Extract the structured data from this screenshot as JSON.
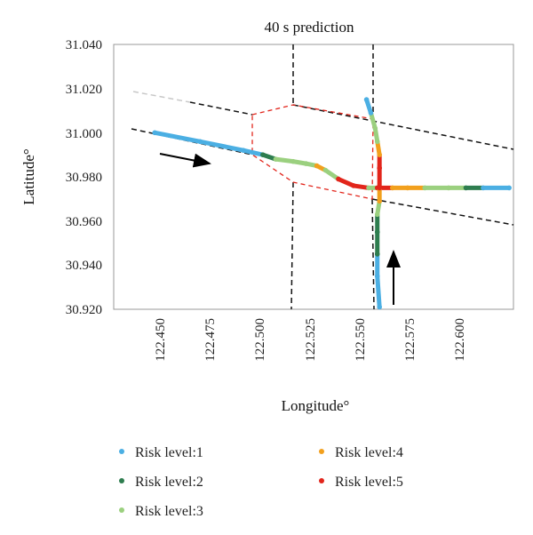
{
  "chart_data": {
    "type": "scatter",
    "title": "40 s prediction",
    "xlabel": "Longitude°",
    "ylabel": "Latitude°",
    "xlim": [
      122.43,
      122.615
    ],
    "ylim": [
      30.92,
      31.04
    ],
    "x_ticks": [
      "122.450",
      "122.475",
      "122.500",
      "122.525",
      "122.550",
      "122.575",
      "122.600"
    ],
    "y_ticks": [
      "31.040",
      "31.020",
      "31.000",
      "30.980",
      "30.960",
      "30.940",
      "30.920"
    ],
    "series": [
      {
        "name": "Risk level:1",
        "color": "#4bafe3"
      },
      {
        "name": "Risk level:2",
        "color": "#2e7d4f"
      },
      {
        "name": "Risk level:3",
        "color": "#9bd07f"
      },
      {
        "name": "Risk level:4",
        "color": "#f2a01d"
      },
      {
        "name": "Risk level:5",
        "color": "#e2251b"
      }
    ],
    "tracks": [
      {
        "name": "eastbound",
        "points": [
          {
            "x": 122.449,
            "y": 31.0,
            "level": 1
          },
          {
            "x": 122.47,
            "y": 30.996,
            "level": 1
          },
          {
            "x": 122.49,
            "y": 30.992,
            "level": 1
          },
          {
            "x": 122.499,
            "y": 30.99,
            "level": 2
          },
          {
            "x": 122.505,
            "y": 30.988,
            "level": 3
          },
          {
            "x": 122.513,
            "y": 30.987,
            "level": 3
          },
          {
            "x": 122.519,
            "y": 30.986,
            "level": 3
          },
          {
            "x": 122.524,
            "y": 30.985,
            "level": 4
          },
          {
            "x": 122.528,
            "y": 30.983,
            "level": 3
          },
          {
            "x": 122.534,
            "y": 30.979,
            "level": 5
          },
          {
            "x": 122.541,
            "y": 30.976,
            "level": 5
          },
          {
            "x": 122.548,
            "y": 30.975,
            "level": 3
          },
          {
            "x": 122.552,
            "y": 30.975,
            "level": 5
          },
          {
            "x": 122.559,
            "y": 30.975,
            "level": 4
          },
          {
            "x": 122.566,
            "y": 30.975,
            "level": 4
          },
          {
            "x": 122.574,
            "y": 30.975,
            "level": 3
          },
          {
            "x": 122.585,
            "y": 30.975,
            "level": 3
          },
          {
            "x": 122.593,
            "y": 30.975,
            "level": 2
          },
          {
            "x": 122.601,
            "y": 30.975,
            "level": 1
          },
          {
            "x": 122.613,
            "y": 30.975,
            "level": 1
          }
        ]
      },
      {
        "name": "northbound",
        "points": [
          {
            "x": 122.553,
            "y": 30.921,
            "level": 1
          },
          {
            "x": 122.552,
            "y": 30.935,
            "level": 1
          },
          {
            "x": 122.552,
            "y": 30.945,
            "level": 2
          },
          {
            "x": 122.552,
            "y": 30.955,
            "level": 2
          },
          {
            "x": 122.552,
            "y": 30.963,
            "level": 3
          },
          {
            "x": 122.553,
            "y": 30.969,
            "level": 4
          },
          {
            "x": 122.553,
            "y": 30.975,
            "level": 5
          },
          {
            "x": 122.553,
            "y": 30.984,
            "level": 5
          },
          {
            "x": 122.553,
            "y": 30.99,
            "level": 4
          },
          {
            "x": 122.552,
            "y": 30.996,
            "level": 3
          },
          {
            "x": 122.551,
            "y": 31.002,
            "level": 3
          },
          {
            "x": 122.549,
            "y": 31.009,
            "level": 1
          },
          {
            "x": 122.547,
            "y": 31.015,
            "level": 1
          }
        ]
      }
    ]
  }
}
